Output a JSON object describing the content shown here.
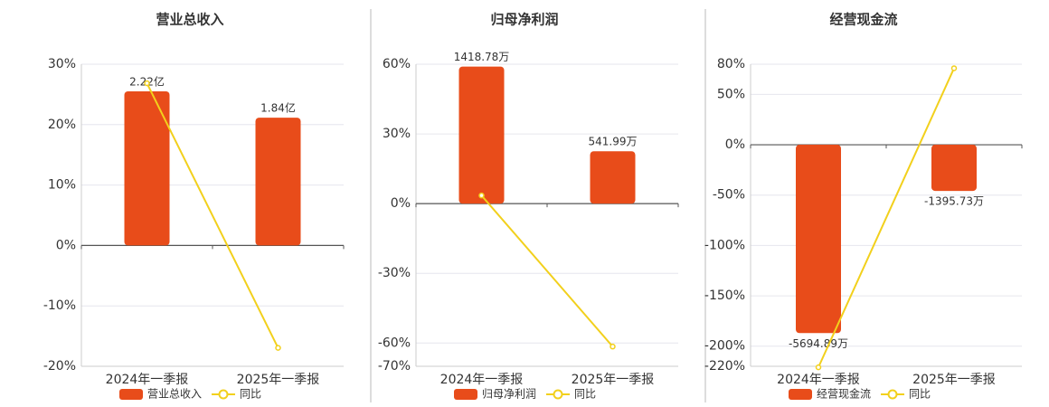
{
  "chart_data": [
    {
      "type": "bar",
      "title": "营业总收入",
      "categories": [
        "2024年一季报",
        "2025年一季报"
      ],
      "series": [
        {
          "name": "营业总收入",
          "type": "bar",
          "color": "#e84c1a",
          "axis": "y2",
          "values": [
            2.22,
            1.84
          ],
          "value_labels": [
            "2.22亿",
            "1.84亿"
          ]
        },
        {
          "name": "同比",
          "type": "line",
          "color": "#f2d01c",
          "values": [
            26.85,
            -16.95
          ]
        }
      ],
      "ylim": [
        -20,
        30
      ],
      "yticks": [
        {
          "value": 30,
          "label": "30%"
        },
        {
          "value": 20,
          "label": "20%"
        },
        {
          "value": 10,
          "label": "10%"
        },
        {
          "value": 0,
          "label": "0%"
        },
        {
          "value": -10,
          "label": "-10%"
        },
        {
          "value": -20,
          "label": "-20%"
        }
      ],
      "y2lim": [
        -1.74,
        2.61
      ],
      "grid": true
    },
    {
      "type": "bar",
      "title": "归母净利润",
      "categories": [
        "2024年一季报",
        "2025年一季报"
      ],
      "series": [
        {
          "name": "归母净利润",
          "type": "bar",
          "color": "#e84c1a",
          "axis": "y2",
          "values": [
            1418.78,
            541.99
          ],
          "value_labels": [
            "1418.78万",
            "541.99万"
          ]
        },
        {
          "name": "同比",
          "type": "line",
          "color": "#f2d01c",
          "values": [
            3.5,
            -61.5
          ]
        }
      ],
      "ylim": [
        -70,
        60
      ],
      "yticks": [
        {
          "value": 60,
          "label": "60%"
        },
        {
          "value": 30,
          "label": "30%"
        },
        {
          "value": 0,
          "label": "0%"
        },
        {
          "value": -30,
          "label": "-30%"
        },
        {
          "value": -60,
          "label": "-60%"
        },
        {
          "value": -70,
          "label": "-70%"
        }
      ],
      "y2lim": [
        -1683.3,
        1442.8
      ],
      "grid": true
    },
    {
      "type": "bar",
      "title": "经营现金流",
      "categories": [
        "2024年一季报",
        "2025年一季报"
      ],
      "series": [
        {
          "name": "经营现金流",
          "type": "bar",
          "color": "#e84c1a",
          "axis": "y2",
          "values": [
            -5694.89,
            -1395.73
          ],
          "value_labels": [
            "-5694.89万",
            "-1395.73万"
          ]
        },
        {
          "name": "同比",
          "type": "line",
          "color": "#f2d01c",
          "values": [
            -221,
            76
          ]
        }
      ],
      "ylim": [
        -220,
        80
      ],
      "yticks": [
        {
          "value": 80,
          "label": "80%"
        },
        {
          "value": 50,
          "label": "50%"
        },
        {
          "value": 0,
          "label": "0%"
        },
        {
          "value": -50,
          "label": "-50%"
        },
        {
          "value": -100,
          "label": "-100%"
        },
        {
          "value": -150,
          "label": "-150%"
        },
        {
          "value": -200,
          "label": "-200%"
        },
        {
          "value": -220,
          "label": "-220%"
        }
      ],
      "y2lim": [
        -6700,
        2436
      ],
      "grid": true
    }
  ]
}
